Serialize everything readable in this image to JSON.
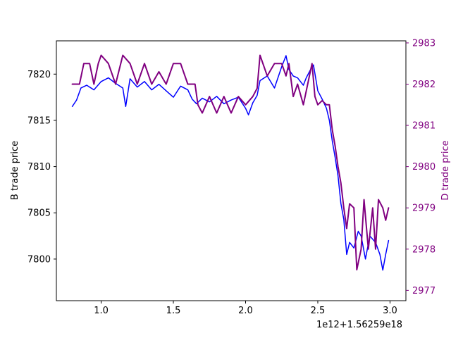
{
  "chart_data": {
    "type": "line",
    "x_offset_label": "1e12+1.56259e18",
    "x_ticks": [
      1.0,
      1.5,
      2.0,
      2.5,
      3.0
    ],
    "x_tick_labels": [
      "1.0",
      "1.5",
      "2.0",
      "2.5",
      "3.0"
    ],
    "xlim": [
      0.69,
      3.11
    ],
    "left_axis": {
      "label": "B trade price",
      "color": "#000000",
      "ylim": [
        7795.5,
        7823.6
      ],
      "ticks": [
        7800,
        7805,
        7810,
        7815,
        7820
      ],
      "tick_labels": [
        "7800",
        "7805",
        "7810",
        "7815",
        "7820"
      ]
    },
    "right_axis": {
      "label": "D trade price",
      "color": "#800080",
      "ylim": [
        2976.75,
        2983.05
      ],
      "ticks": [
        2977,
        2978,
        2979,
        2980,
        2981,
        2982,
        2983
      ],
      "tick_labels": [
        "2977",
        "2978",
        "2979",
        "2980",
        "2981",
        "2982",
        "2983"
      ]
    },
    "series": [
      {
        "axis": "left",
        "color": "#0000ff",
        "points": [
          [
            0.8,
            7816.5
          ],
          [
            0.83,
            7817.2
          ],
          [
            0.86,
            7818.5
          ],
          [
            0.9,
            7818.8
          ],
          [
            0.95,
            7818.3
          ],
          [
            1.0,
            7819.2
          ],
          [
            1.05,
            7819.6
          ],
          [
            1.1,
            7819.0
          ],
          [
            1.15,
            7818.5
          ],
          [
            1.17,
            7816.5
          ],
          [
            1.2,
            7819.5
          ],
          [
            1.25,
            7818.6
          ],
          [
            1.3,
            7819.2
          ],
          [
            1.35,
            7818.3
          ],
          [
            1.4,
            7818.9
          ],
          [
            1.45,
            7818.2
          ],
          [
            1.5,
            7817.5
          ],
          [
            1.55,
            7818.7
          ],
          [
            1.6,
            7818.3
          ],
          [
            1.63,
            7817.3
          ],
          [
            1.66,
            7816.8
          ],
          [
            1.7,
            7817.4
          ],
          [
            1.75,
            7817.0
          ],
          [
            1.8,
            7817.6
          ],
          [
            1.85,
            7816.8
          ],
          [
            1.9,
            7817.2
          ],
          [
            1.95,
            7817.5
          ],
          [
            2.0,
            7816.3
          ],
          [
            2.02,
            7815.6
          ],
          [
            2.05,
            7816.9
          ],
          [
            2.08,
            7817.7
          ],
          [
            2.1,
            7819.3
          ],
          [
            2.15,
            7819.8
          ],
          [
            2.2,
            7818.5
          ],
          [
            2.25,
            7820.8
          ],
          [
            2.28,
            7822.0
          ],
          [
            2.3,
            7820.5
          ],
          [
            2.33,
            7819.8
          ],
          [
            2.36,
            7819.6
          ],
          [
            2.4,
            7818.8
          ],
          [
            2.42,
            7819.6
          ],
          [
            2.45,
            7820.5
          ],
          [
            2.47,
            7821.0
          ],
          [
            2.5,
            7818.2
          ],
          [
            2.53,
            7817.3
          ],
          [
            2.56,
            7816.3
          ],
          [
            2.58,
            7815.0
          ],
          [
            2.6,
            7812.8
          ],
          [
            2.62,
            7811.0
          ],
          [
            2.64,
            7809.0
          ],
          [
            2.66,
            7806.0
          ],
          [
            2.68,
            7804.3
          ],
          [
            2.7,
            7800.5
          ],
          [
            2.72,
            7801.8
          ],
          [
            2.75,
            7801.2
          ],
          [
            2.78,
            7803.0
          ],
          [
            2.8,
            7802.5
          ],
          [
            2.83,
            7800.0
          ],
          [
            2.86,
            7802.5
          ],
          [
            2.9,
            7801.8
          ],
          [
            2.93,
            7800.5
          ],
          [
            2.95,
            7798.8
          ],
          [
            2.97,
            7800.5
          ],
          [
            2.99,
            7802.0
          ]
        ]
      },
      {
        "axis": "right",
        "color": "#800080",
        "points": [
          [
            0.8,
            2982.0
          ],
          [
            0.85,
            2982.0
          ],
          [
            0.88,
            2982.5
          ],
          [
            0.92,
            2982.5
          ],
          [
            0.95,
            2982.0
          ],
          [
            0.98,
            2982.5
          ],
          [
            1.0,
            2982.7
          ],
          [
            1.05,
            2982.5
          ],
          [
            1.1,
            2982.0
          ],
          [
            1.15,
            2982.7
          ],
          [
            1.2,
            2982.5
          ],
          [
            1.25,
            2982.0
          ],
          [
            1.3,
            2982.5
          ],
          [
            1.35,
            2982.0
          ],
          [
            1.4,
            2982.3
          ],
          [
            1.45,
            2982.0
          ],
          [
            1.5,
            2982.5
          ],
          [
            1.55,
            2982.5
          ],
          [
            1.6,
            2982.0
          ],
          [
            1.65,
            2982.0
          ],
          [
            1.67,
            2981.5
          ],
          [
            1.7,
            2981.3
          ],
          [
            1.75,
            2981.7
          ],
          [
            1.8,
            2981.3
          ],
          [
            1.85,
            2981.7
          ],
          [
            1.9,
            2981.3
          ],
          [
            1.95,
            2981.7
          ],
          [
            2.0,
            2981.5
          ],
          [
            2.05,
            2981.7
          ],
          [
            2.08,
            2981.9
          ],
          [
            2.1,
            2982.7
          ],
          [
            2.15,
            2982.2
          ],
          [
            2.2,
            2982.5
          ],
          [
            2.25,
            2982.5
          ],
          [
            2.28,
            2982.2
          ],
          [
            2.3,
            2982.5
          ],
          [
            2.33,
            2981.7
          ],
          [
            2.36,
            2982.0
          ],
          [
            2.4,
            2981.5
          ],
          [
            2.43,
            2982.0
          ],
          [
            2.46,
            2982.5
          ],
          [
            2.48,
            2981.7
          ],
          [
            2.5,
            2981.5
          ],
          [
            2.53,
            2981.6
          ],
          [
            2.56,
            2981.5
          ],
          [
            2.58,
            2981.5
          ],
          [
            2.6,
            2980.9
          ],
          [
            2.62,
            2980.5
          ],
          [
            2.64,
            2980.0
          ],
          [
            2.66,
            2979.6
          ],
          [
            2.68,
            2979.0
          ],
          [
            2.7,
            2978.5
          ],
          [
            2.72,
            2979.1
          ],
          [
            2.75,
            2979.0
          ],
          [
            2.77,
            2977.5
          ],
          [
            2.8,
            2978.0
          ],
          [
            2.82,
            2979.2
          ],
          [
            2.85,
            2978.0
          ],
          [
            2.88,
            2979.0
          ],
          [
            2.9,
            2978.0
          ],
          [
            2.92,
            2979.2
          ],
          [
            2.95,
            2979.0
          ],
          [
            2.97,
            2978.7
          ],
          [
            2.99,
            2979.0
          ]
        ]
      }
    ]
  }
}
